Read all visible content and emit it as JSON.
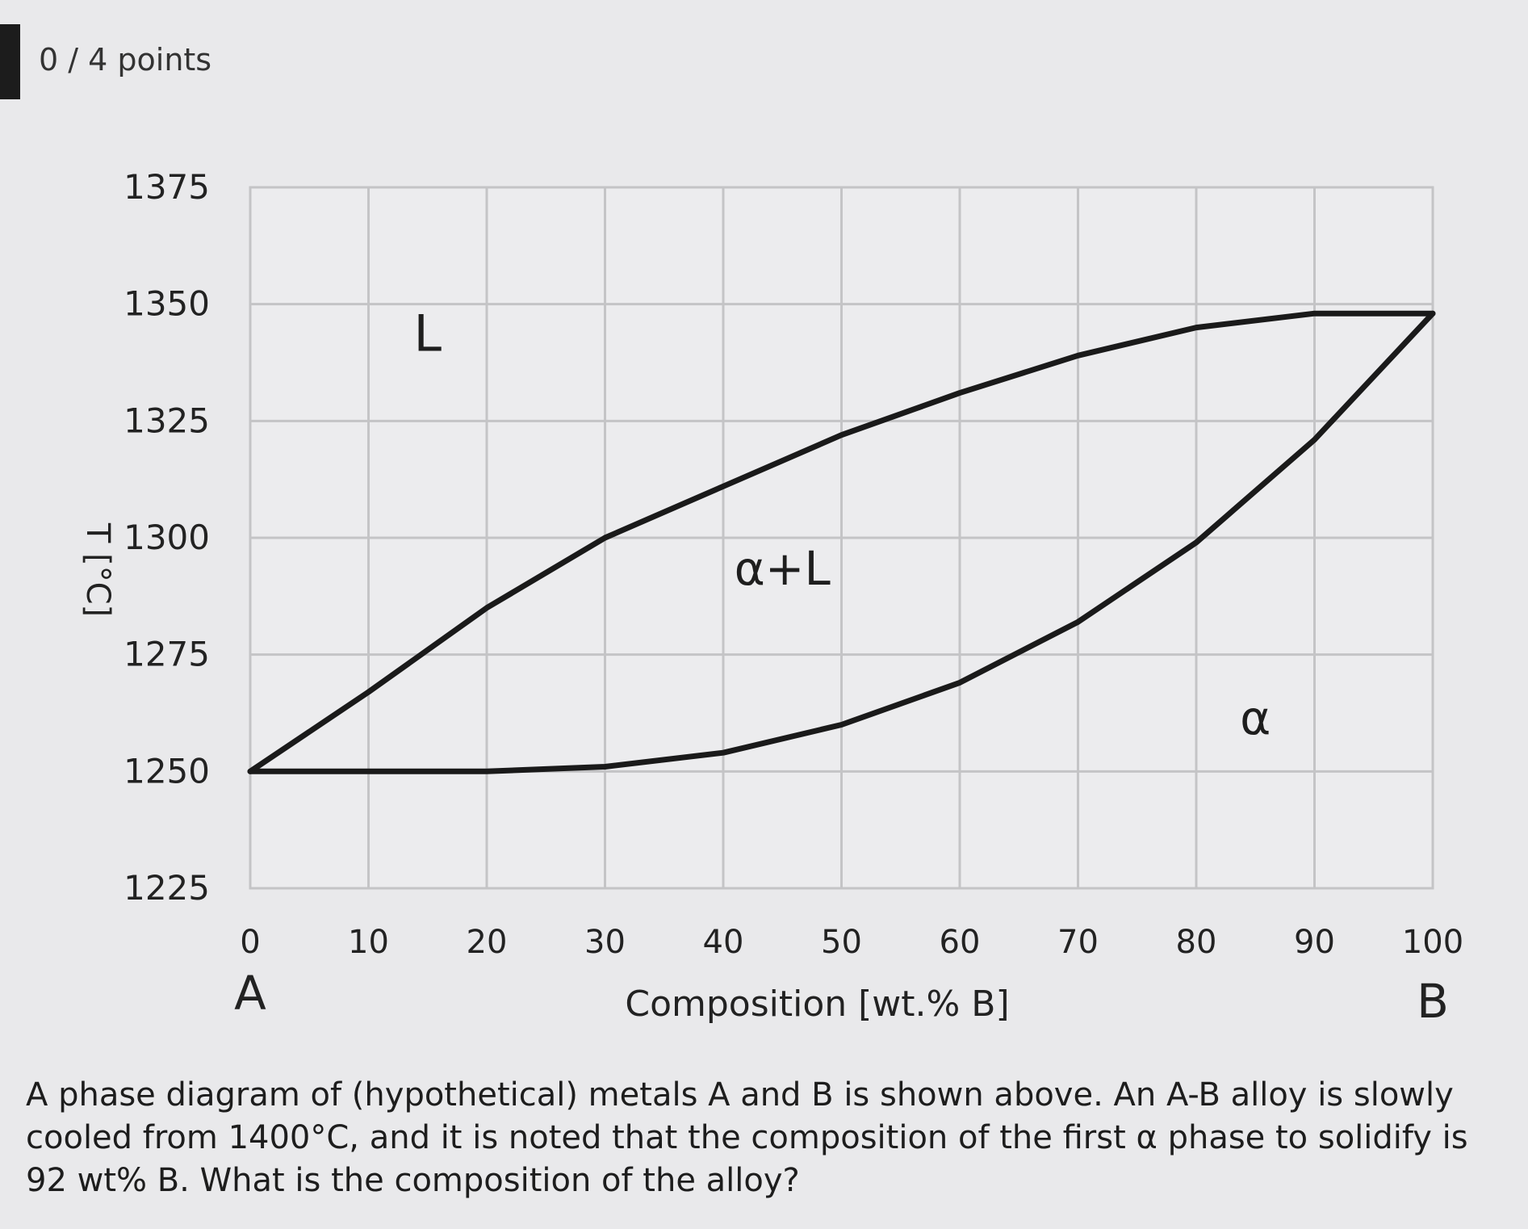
{
  "header": {
    "points_label": "0 / 4 points"
  },
  "chart_data": {
    "type": "line",
    "title": "",
    "xlabel": "Composition [wt.% B]",
    "ylabel": "T [°C]",
    "x_ticks": [
      "0",
      "10",
      "20",
      "30",
      "40",
      "50",
      "60",
      "70",
      "80",
      "90",
      "100"
    ],
    "y_ticks": [
      "1225",
      "1250",
      "1275",
      "1300",
      "1325",
      "1350",
      "1375"
    ],
    "xlim": [
      0,
      100
    ],
    "ylim": [
      1225,
      1375
    ],
    "grid": true,
    "end_labels": {
      "left": "A",
      "right": "B"
    },
    "region_labels": {
      "liquid": "L",
      "two_phase": "α+L",
      "solid": "α"
    },
    "series": [
      {
        "name": "",
        "x": [
          0,
          10,
          20,
          30,
          40,
          50,
          60,
          70,
          80,
          90,
          100
        ],
        "y": [
          1250,
          1267,
          1285,
          1300,
          1311,
          1322,
          1331,
          1339,
          1345,
          1348,
          1348
        ],
        "color": "#1a1a1a"
      },
      {
        "name": "",
        "x": [
          0,
          10,
          20,
          30,
          40,
          50,
          60,
          70,
          80,
          90,
          100
        ],
        "y": [
          1250,
          1250,
          1250,
          1251,
          1254,
          1260,
          1269,
          1282,
          1299,
          1321,
          1348
        ],
        "color": "#1a1a1a"
      }
    ]
  },
  "question": {
    "lines": [
      "A phase diagram of (hypothetical) metals A and B is shown above. An A-B alloy is slowly",
      "cooled from 1400°C, and it is noted that the composition of the first α phase to solidify is",
      "92 wt% B. What is the composition of the alloy?"
    ]
  }
}
